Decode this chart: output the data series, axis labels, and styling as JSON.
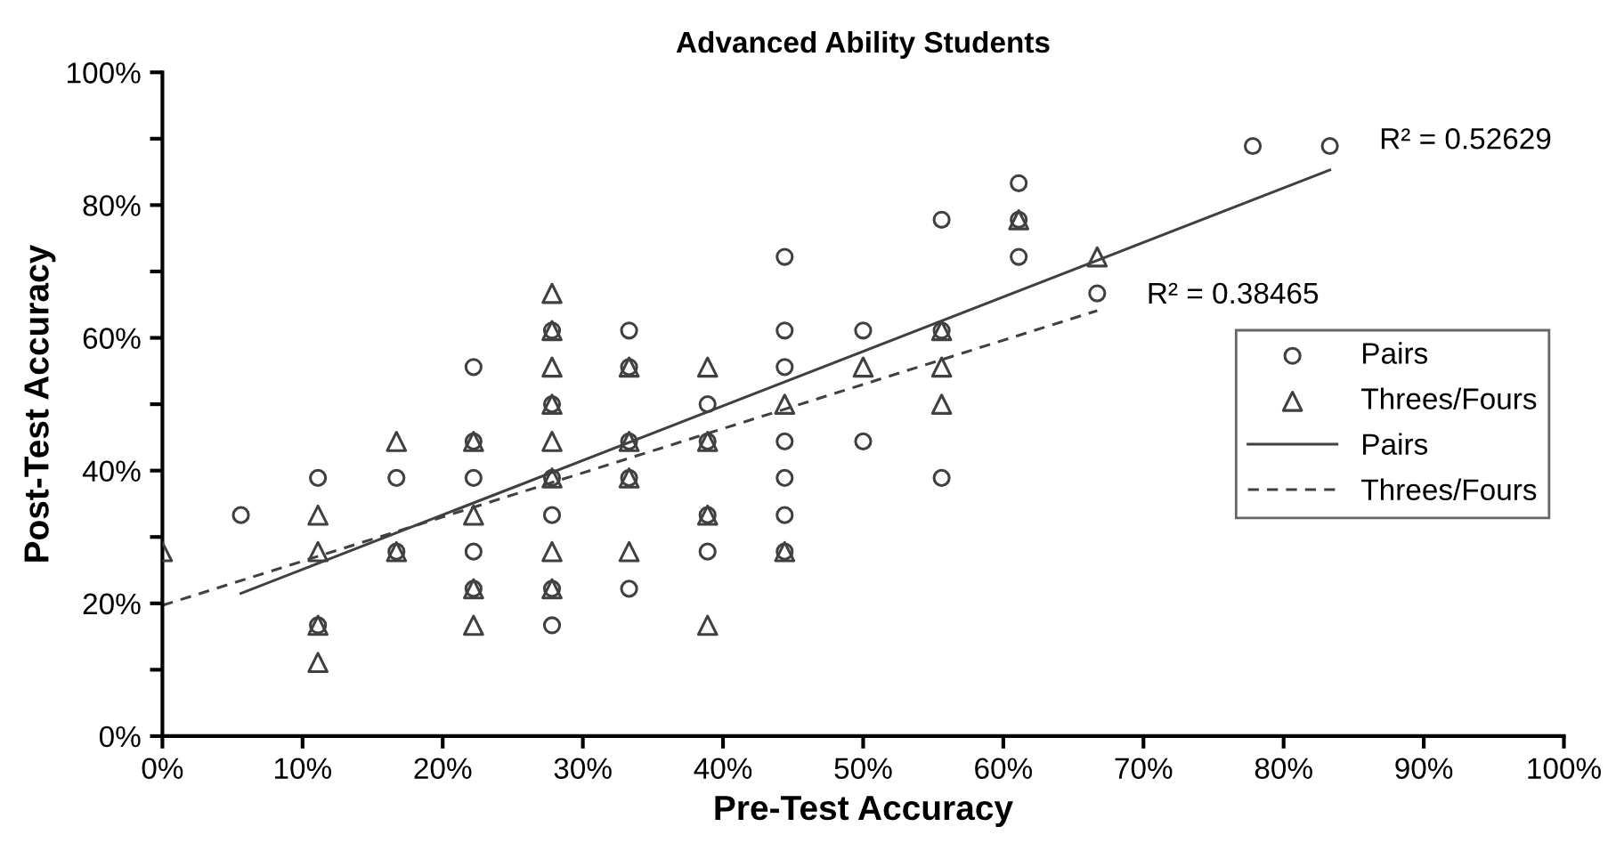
{
  "chart_data": {
    "type": "scatter",
    "title": "Advanced Ability Students",
    "xlabel": "Pre-Test Accuracy",
    "ylabel": "Post-Test Accuracy",
    "xlim": [
      0,
      100
    ],
    "ylim": [
      0,
      100
    ],
    "xticks": [
      {
        "value": 0,
        "label": "0%"
      },
      {
        "value": 10,
        "label": "10%"
      },
      {
        "value": 20,
        "label": "20%"
      },
      {
        "value": 30,
        "label": "30%"
      },
      {
        "value": 40,
        "label": "40%"
      },
      {
        "value": 50,
        "label": "50%"
      },
      {
        "value": 60,
        "label": "60%"
      },
      {
        "value": 70,
        "label": "70%"
      },
      {
        "value": 80,
        "label": "80%"
      },
      {
        "value": 90,
        "label": "90%"
      },
      {
        "value": 100,
        "label": "100%"
      }
    ],
    "yticks": [
      {
        "value": 0,
        "label": "0%"
      },
      {
        "value": 10,
        "label": null
      },
      {
        "value": 20,
        "label": "20%"
      },
      {
        "value": 30,
        "label": null
      },
      {
        "value": 40,
        "label": "40%"
      },
      {
        "value": 50,
        "label": null
      },
      {
        "value": 60,
        "label": "60%"
      },
      {
        "value": 70,
        "label": null
      },
      {
        "value": 80,
        "label": "80%"
      },
      {
        "value": 90,
        "label": null
      },
      {
        "value": 100,
        "label": "100%"
      }
    ],
    "grid": false,
    "legend": "right",
    "series": [
      {
        "name": "Pairs",
        "marker": "circle",
        "color": "#404040",
        "x": [
          5.6,
          11.1,
          11.1,
          16.7,
          16.7,
          22.2,
          22.2,
          22.2,
          22.2,
          22.2,
          27.8,
          27.8,
          27.8,
          27.8,
          27.8,
          27.8,
          33.3,
          33.3,
          33.3,
          33.3,
          33.3,
          38.9,
          38.9,
          38.9,
          38.9,
          44.4,
          44.4,
          44.4,
          44.4,
          44.4,
          44.4,
          44.4,
          50,
          50,
          55.6,
          55.6,
          55.6,
          61.1,
          61.1,
          61.1,
          66.7,
          77.8,
          83.3
        ],
        "values": [
          33.3,
          38.9,
          16.7,
          38.9,
          27.8,
          55.6,
          44.4,
          38.9,
          27.8,
          22.2,
          61.1,
          50,
          38.9,
          33.3,
          22.2,
          16.7,
          61.1,
          55.6,
          44.4,
          38.9,
          22.2,
          50,
          44.4,
          33.3,
          27.8,
          72.2,
          61.1,
          55.6,
          44.4,
          38.9,
          33.3,
          27.8,
          61.1,
          44.4,
          77.8,
          61.1,
          38.9,
          83.3,
          77.8,
          72.2,
          66.7,
          88.9,
          88.9
        ]
      },
      {
        "name": "Threes/Fours",
        "marker": "triangle",
        "color": "#404040",
        "x": [
          0,
          11.1,
          11.1,
          11.1,
          11.1,
          16.7,
          16.7,
          22.2,
          22.2,
          22.2,
          22.2,
          27.8,
          27.8,
          27.8,
          27.8,
          27.8,
          27.8,
          27.8,
          27.8,
          33.3,
          33.3,
          33.3,
          33.3,
          38.9,
          38.9,
          38.9,
          38.9,
          44.4,
          44.4,
          50,
          55.6,
          55.6,
          55.6,
          61.1,
          66.7
        ],
        "values": [
          27.8,
          33.3,
          27.8,
          16.7,
          11.1,
          44.4,
          27.8,
          44.4,
          33.3,
          22.2,
          16.7,
          66.7,
          61.1,
          55.6,
          50,
          44.4,
          38.9,
          27.8,
          22.2,
          55.6,
          44.4,
          38.9,
          27.8,
          55.6,
          44.4,
          33.3,
          16.7,
          50,
          27.8,
          55.6,
          61.1,
          55.6,
          50,
          77.8,
          72.2
        ]
      },
      {
        "name": "Pairs",
        "type": "line",
        "line_style": "solid",
        "color": "#404040",
        "x": [
          5.6,
          83.3
        ],
        "values": [
          21.5,
          85.3
        ]
      },
      {
        "name": "Threes/Fours",
        "type": "line",
        "line_style": "dashed",
        "color": "#404040",
        "x": [
          0,
          66.7
        ],
        "values": [
          19.7,
          64.1
        ]
      }
    ],
    "annotations": [
      {
        "text": "R² = 0.52629",
        "x": 83.3,
        "y": 85.3
      },
      {
        "text": "R² = 0.38465",
        "x": 66.7,
        "y": 64.1
      }
    ]
  }
}
